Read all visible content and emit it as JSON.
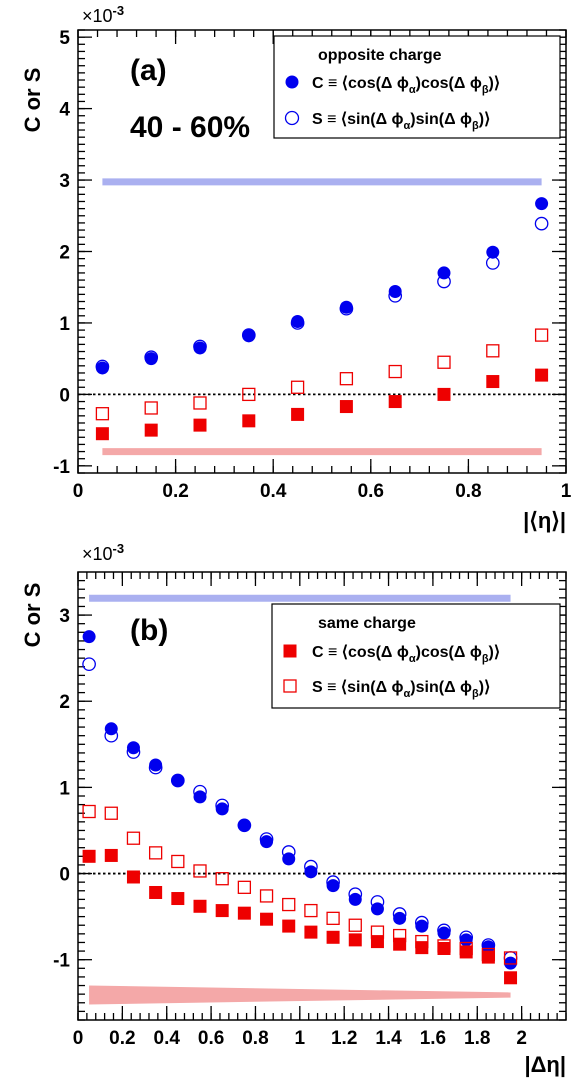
{
  "y_axis_title": "C or S",
  "chart_data": [
    {
      "type": "scatter",
      "panel_label": "(a)",
      "centrality_label": "40 - 60%",
      "multiplier": "×10",
      "multiplier_exp": "-3",
      "xlabel": "|⟨η⟩|",
      "ylabel": "C or S",
      "xlim": [
        0,
        1
      ],
      "ylim": [
        -1.1,
        5.1
      ],
      "x_ticks": [
        "0",
        "0.2",
        "0.4",
        "0.6",
        "0.8",
        "1"
      ],
      "y_ticks": [
        "-1",
        "0",
        "1",
        "2",
        "3",
        "4",
        "5"
      ],
      "legend_title": "opposite charge",
      "legend_entries": [
        {
          "prefix": "C",
          "expr": " ≡ ⟨cos(Δ ϕ",
          "sub1": "α",
          "mid": ")cos(Δ ϕ",
          "sub2": "β",
          "end": ")⟩"
        },
        {
          "prefix": "S",
          "expr": " ≡ ⟨sin(Δ ϕ",
          "sub1": "α",
          "mid": ")sin(Δ ϕ",
          "sub2": "β",
          "end": ")⟩"
        }
      ],
      "legend_placement": "top-right",
      "zero_line": 0,
      "bands": [
        {
          "color": "#aab0f0",
          "x": [
            0.05,
            0.95
          ],
          "y1": [
            3.0,
            3.0
          ],
          "y2": [
            2.95,
            2.95
          ]
        },
        {
          "color": "#f4a8a8",
          "x": [
            0.05,
            0.95
          ],
          "y1": [
            -0.77,
            -0.77
          ],
          "y2": [
            -0.83,
            -0.83
          ]
        }
      ],
      "x": [
        0.05,
        0.15,
        0.25,
        0.35,
        0.45,
        0.55,
        0.65,
        0.75,
        0.85,
        0.95
      ],
      "series": [
        {
          "name": "opposite C",
          "marker": "circle",
          "filled": true,
          "color": "#0000ee",
          "values": [
            0.37,
            0.5,
            0.65,
            0.82,
            1.02,
            1.22,
            1.44,
            1.7,
            1.99,
            2.67
          ]
        },
        {
          "name": "opposite S",
          "marker": "circle",
          "filled": false,
          "color": "#0000ee",
          "values": [
            0.39,
            0.52,
            0.67,
            0.83,
            1.0,
            1.2,
            1.38,
            1.58,
            1.84,
            2.39
          ]
        },
        {
          "name": "same C",
          "marker": "square",
          "filled": true,
          "color": "#ee0000",
          "values": [
            -0.55,
            -0.5,
            -0.43,
            -0.37,
            -0.28,
            -0.17,
            -0.1,
            0.0,
            0.18,
            0.27
          ]
        },
        {
          "name": "same S",
          "marker": "square",
          "filled": false,
          "color": "#ee0000",
          "values": [
            -0.27,
            -0.19,
            -0.12,
            0.0,
            0.1,
            0.22,
            0.32,
            0.45,
            0.61,
            0.83
          ]
        }
      ]
    },
    {
      "type": "scatter",
      "panel_label": "(b)",
      "multiplier": "×10",
      "multiplier_exp": "-3",
      "xlabel": "|Δη|",
      "ylabel": "C or S",
      "xlim": [
        0,
        2.2
      ],
      "ylim": [
        -1.7,
        3.5
      ],
      "x_ticks": [
        "0",
        "0.2",
        "0.4",
        "0.6",
        "0.8",
        "1",
        "1.2",
        "1.4",
        "1.6",
        "1.8",
        "2"
      ],
      "y_ticks": [
        "-1",
        "0",
        "1",
        "2",
        "3"
      ],
      "legend_title": "same charge",
      "legend_entries": [
        {
          "prefix": "C",
          "expr": " ≡ ⟨cos(Δ ϕ",
          "sub1": "α",
          "mid": ")cos(Δ ϕ",
          "sub2": "β",
          "end": ")⟩"
        },
        {
          "prefix": "S",
          "expr": " ≡ ⟨sin(Δ ϕ",
          "sub1": "α",
          "mid": ")sin(Δ ϕ",
          "sub2": "β",
          "end": ")⟩"
        }
      ],
      "legend_placement": "top-right",
      "zero_line": 0,
      "bands": [
        {
          "color": "#aab0f0",
          "x": [
            0.05,
            1.95
          ],
          "y1": [
            3.21,
            3.21
          ],
          "y2": [
            3.18,
            3.18
          ]
        },
        {
          "color": "#f4a8a8",
          "x": [
            0.05,
            1.95
          ],
          "y1": [
            -1.3,
            -1.38
          ],
          "y2": [
            -1.52,
            -1.44
          ]
        }
      ],
      "x": [
        0.05,
        0.15,
        0.25,
        0.35,
        0.45,
        0.55,
        0.65,
        0.75,
        0.85,
        0.95,
        1.05,
        1.15,
        1.25,
        1.35,
        1.45,
        1.55,
        1.65,
        1.75,
        1.85,
        1.95
      ],
      "series": [
        {
          "name": "opposite C",
          "marker": "circle",
          "filled": true,
          "color": "#0000ee",
          "values": [
            2.75,
            1.68,
            1.46,
            1.26,
            1.08,
            0.89,
            0.75,
            0.56,
            0.37,
            0.17,
            0.02,
            -0.14,
            -0.3,
            -0.41,
            -0.52,
            -0.61,
            -0.69,
            -0.77,
            -0.85,
            -1.04
          ]
        },
        {
          "name": "opposite S",
          "marker": "circle",
          "filled": false,
          "color": "#0000ee",
          "values": [
            2.43,
            1.6,
            1.41,
            1.23,
            1.08,
            0.95,
            0.79,
            0.56,
            0.4,
            0.25,
            0.08,
            -0.1,
            -0.24,
            -0.33,
            -0.47,
            -0.57,
            -0.66,
            -0.74,
            -0.83,
            -0.98
          ]
        },
        {
          "name": "same C",
          "marker": "square",
          "filled": true,
          "color": "#ee0000",
          "values": [
            0.2,
            0.21,
            -0.04,
            -0.22,
            -0.29,
            -0.38,
            -0.43,
            -0.46,
            -0.53,
            -0.61,
            -0.68,
            -0.74,
            -0.77,
            -0.79,
            -0.82,
            -0.86,
            -0.87,
            -0.91,
            -0.97,
            -1.21
          ]
        },
        {
          "name": "same S",
          "marker": "square",
          "filled": false,
          "color": "#ee0000",
          "values": [
            0.72,
            0.7,
            0.41,
            0.24,
            0.14,
            0.03,
            -0.06,
            -0.16,
            -0.26,
            -0.36,
            -0.43,
            -0.52,
            -0.6,
            -0.68,
            -0.72,
            -0.79,
            -0.84,
            -0.87,
            -0.94,
            -0.98
          ]
        }
      ]
    }
  ]
}
